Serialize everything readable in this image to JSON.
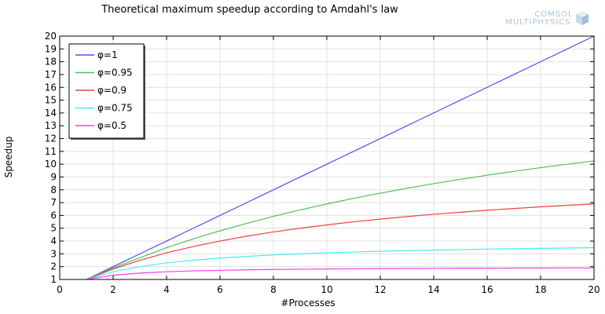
{
  "chart_data": {
    "type": "line",
    "title": "Theoretical maximum speedup according to Amdahl's law",
    "xlabel": "#Processes",
    "ylabel": "Speedup",
    "xlim": [
      0,
      20
    ],
    "ylim": [
      1,
      20
    ],
    "xticks": [
      0,
      2,
      4,
      6,
      8,
      10,
      12,
      14,
      16,
      18,
      20
    ],
    "yticks": [
      1,
      2,
      3,
      4,
      5,
      6,
      7,
      8,
      9,
      10,
      11,
      12,
      13,
      14,
      15,
      16,
      17,
      18,
      19,
      20
    ],
    "grid": true,
    "legend_position": "top-left",
    "x": [
      1,
      2,
      3,
      4,
      5,
      6,
      7,
      8,
      9,
      10,
      11,
      12,
      13,
      14,
      15,
      16,
      17,
      18,
      19,
      20
    ],
    "series": [
      {
        "name": "φ=1",
        "color": "#5050f0",
        "values": [
          1,
          2,
          3,
          4,
          5,
          6,
          7,
          8,
          9,
          10,
          11,
          12,
          13,
          14,
          15,
          16,
          17,
          18,
          19,
          20
        ]
      },
      {
        "name": "φ=0.95",
        "color": "#50c050",
        "values": [
          1,
          1.9,
          2.7,
          3.48,
          4.17,
          4.8,
          5.38,
          5.93,
          6.43,
          6.9,
          7.33,
          7.74,
          8.12,
          8.48,
          8.82,
          9.14,
          9.44,
          9.73,
          10.0,
          10.26
        ]
      },
      {
        "name": "φ=0.9",
        "color": "#f04040",
        "values": [
          1,
          1.82,
          2.5,
          3.08,
          3.57,
          4.0,
          4.38,
          4.71,
          5.0,
          5.26,
          5.5,
          5.71,
          5.91,
          6.09,
          6.25,
          6.4,
          6.54,
          6.67,
          6.79,
          6.9
        ]
      },
      {
        "name": "φ=0.75",
        "color": "#40f0f0",
        "values": [
          1,
          1.6,
          2.0,
          2.29,
          2.5,
          2.67,
          2.8,
          2.91,
          3.0,
          3.08,
          3.14,
          3.2,
          3.25,
          3.29,
          3.33,
          3.37,
          3.4,
          3.43,
          3.45,
          3.48
        ]
      },
      {
        "name": "φ=0.5",
        "color": "#f040f0",
        "values": [
          1,
          1.33,
          1.5,
          1.6,
          1.67,
          1.71,
          1.75,
          1.78,
          1.8,
          1.82,
          1.83,
          1.85,
          1.86,
          1.87,
          1.88,
          1.88,
          1.89,
          1.89,
          1.9,
          1.9
        ]
      }
    ]
  },
  "watermark": {
    "line1": "COMSOL",
    "line2": "MULTIPHYSICS"
  }
}
